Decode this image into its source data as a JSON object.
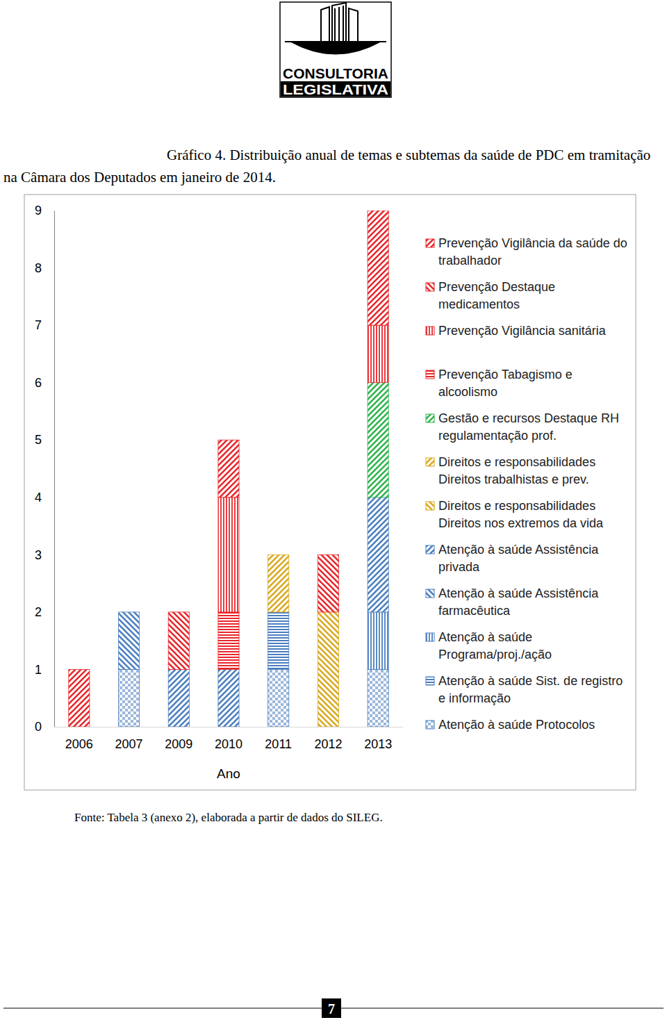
{
  "chart_data": {
    "type": "bar",
    "stacked": true,
    "title": "Gráfico 4. Distribuição anual de temas e subtemas da saúde de PDC em tramitação na Câmara dos Deputados em janeiro de 2014.",
    "x_label": "Ano",
    "categories": [
      "2006",
      "2007",
      "2009",
      "2010",
      "2011",
      "2012",
      "2013"
    ],
    "ylim": [
      0,
      9
    ],
    "yticks": [
      0,
      1,
      2,
      3,
      4,
      5,
      6,
      7,
      8,
      9
    ],
    "grid": false,
    "legend": "right",
    "series": [
      {
        "name": "Prevenção Vigilância da saúde do trabalhador",
        "color": "#e8262a",
        "values": [
          1,
          0,
          0,
          1,
          0,
          0,
          2
        ]
      },
      {
        "name": "Prevenção Destaque medicamentos",
        "color": "#e8262a",
        "values": [
          0,
          0,
          1,
          0,
          0,
          1,
          0
        ]
      },
      {
        "name": "Prevenção Vigilância sanitária",
        "color": "#e8262a",
        "values": [
          0,
          0,
          0,
          2,
          0,
          0,
          1
        ]
      },
      {
        "name": "Prevenção Tabagismo e alcoolismo",
        "color": "#e8262a",
        "values": [
          0,
          0,
          0,
          1,
          0,
          0,
          0
        ]
      },
      {
        "name": "Gestão e recursos Destaque RH regulamentação prof.",
        "color": "#2db34a",
        "values": [
          0,
          0,
          0,
          0,
          0,
          0,
          2
        ]
      },
      {
        "name": "Direitos e responsabilidades Direitos trabalhistas e prev.",
        "color": "#d9a81e",
        "values": [
          0,
          0,
          0,
          0,
          1,
          0,
          0
        ]
      },
      {
        "name": "Direitos e responsabilidades Direitos nos extremos da vida",
        "color": "#d9a81e",
        "values": [
          0,
          0,
          0,
          0,
          0,
          2,
          0
        ]
      },
      {
        "name": "Atenção à saúde Assistência privada",
        "color": "#4a7ebf",
        "values": [
          0,
          0,
          1,
          1,
          0,
          0,
          2
        ]
      },
      {
        "name": "Atenção à saúde Assistência farmacêutica",
        "color": "#4a7ebf",
        "values": [
          0,
          1,
          0,
          0,
          0,
          0,
          0
        ]
      },
      {
        "name": "Atenção à saúde Programa/proj./ação",
        "color": "#4a7ebf",
        "values": [
          0,
          0,
          0,
          0,
          0,
          0,
          1
        ]
      },
      {
        "name": "Atenção à saúde Sist. de registro e informação",
        "color": "#4a7ebf",
        "values": [
          0,
          0,
          0,
          0,
          1,
          0,
          0
        ]
      },
      {
        "name": "Atenção à saúde Protocolos",
        "color": "#4a7ebf",
        "values": [
          0,
          1,
          0,
          0,
          1,
          0,
          1
        ]
      }
    ],
    "annotations": [
      "CONSULTORIA",
      "LEGISLATIVA",
      "Fonte: Tabela 3 (anexo 2), elaborada a partir de dados do SILEG.",
      "7"
    ]
  }
}
